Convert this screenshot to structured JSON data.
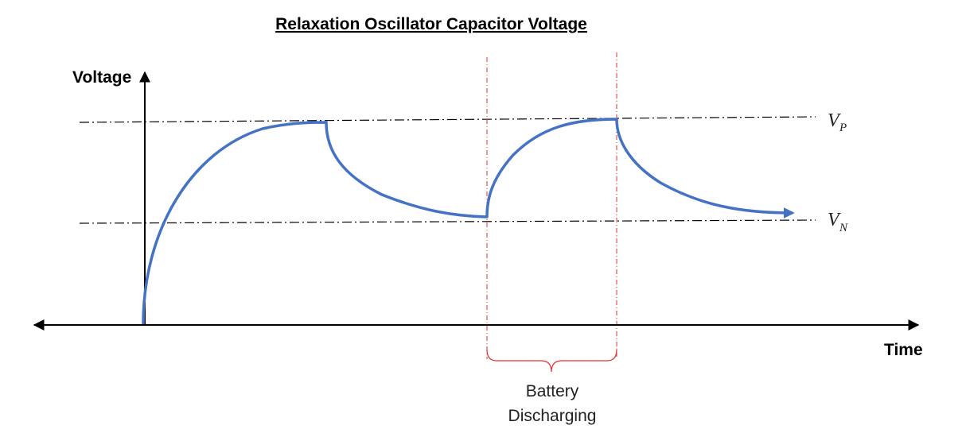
{
  "title": "Relaxation Oscillator Capacitor Voltage",
  "axes": {
    "y_label": "Voltage",
    "x_label": "Time"
  },
  "levels": {
    "vp": {
      "main": "V",
      "sub": "P"
    },
    "vn": {
      "main": "V",
      "sub": "N"
    }
  },
  "annotation": {
    "line1": "Battery",
    "line2": "Discharging"
  },
  "colors": {
    "curve": "#4472C4",
    "annotation": "#E03030",
    "axis": "#000000",
    "threshold": "#000000"
  }
}
